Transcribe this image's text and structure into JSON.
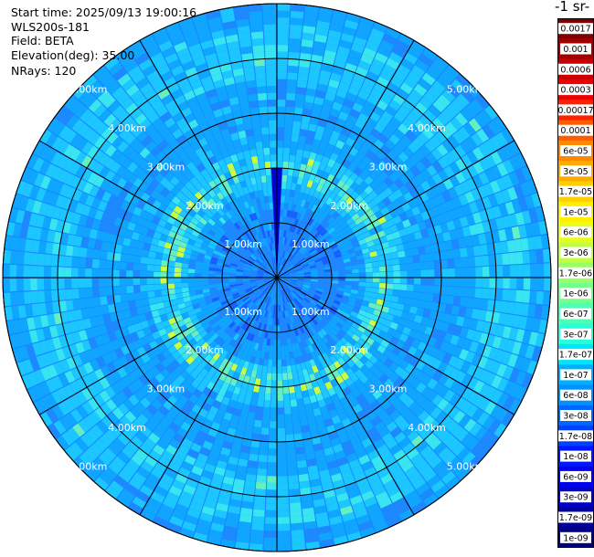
{
  "header": {
    "start_time": "Start time: 2025/09/13 19:00:16",
    "instrument": "WLS200s-181",
    "field": "Field: BETA",
    "elevation": "Elevation(deg): 35.00",
    "nrays": "NRays: 120"
  },
  "colorbar": {
    "unit_label": "-1 sr-",
    "ticks": [
      "0.0017",
      "0.001",
      "0.0006",
      "0.0003",
      "0.00017",
      "0.0001",
      "6e-05",
      "3e-05",
      "1.7e-05",
      "1e-05",
      "6e-06",
      "3e-06",
      "1.7e-06",
      "1e-06",
      "6e-07",
      "3e-07",
      "1.7e-07",
      "1e-07",
      "6e-08",
      "3e-08",
      "1.7e-08",
      "1e-08",
      "6e-09",
      "3e-09",
      "1.7e-09",
      "1e-09"
    ],
    "colors": [
      "#7f0000",
      "#a00000",
      "#c80000",
      "#ee0000",
      "#ff2200",
      "#ff5a00",
      "#ff8800",
      "#ffaa00",
      "#ffd000",
      "#ffee00",
      "#e6ff1a",
      "#bfff3f",
      "#99ff66",
      "#73ff8c",
      "#4dffb3",
      "#26ffd9",
      "#00e5ff",
      "#00b0ff",
      "#0090ff",
      "#0068ff",
      "#0040ff",
      "#0018ff",
      "#0000ee",
      "#0000c8",
      "#0000a0",
      "#000080"
    ]
  },
  "chart_data": {
    "type": "heatmap",
    "projection": "polar-ppi",
    "field": "BETA",
    "rays": 120,
    "range_rings_km": [
      1,
      2,
      3,
      4,
      5
    ],
    "ring_labels": [
      "1.00km",
      "2.00km",
      "3.00km",
      "4.00km",
      "5.00km"
    ],
    "max_range_km": 5.0,
    "scale": "log",
    "value_range": [
      1e-09,
      0.0017
    ],
    "dominant_values": {
      "outer_background": "1e-07",
      "near_ring_2km": "3e-06",
      "north_streak": "6e-09"
    }
  }
}
